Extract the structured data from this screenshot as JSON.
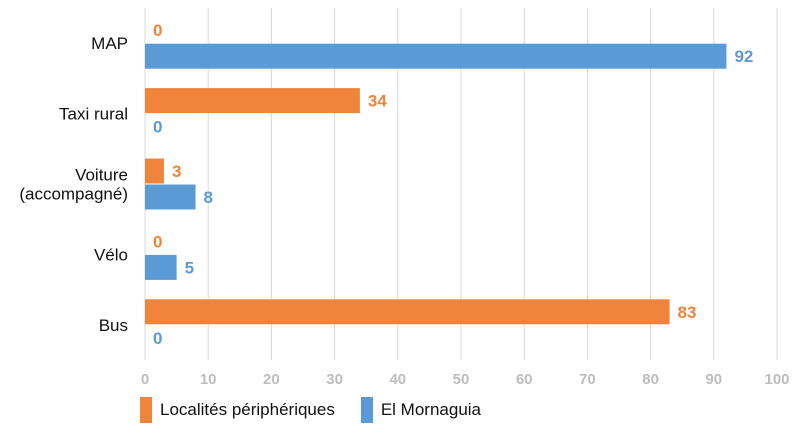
{
  "chart_data": {
    "type": "bar",
    "orientation": "horizontal",
    "categories": [
      "MAP",
      "Taxi rural",
      "Voiture\n(accompagné)",
      "Vélo",
      "Bus"
    ],
    "series": [
      {
        "name": "Localités périphériques",
        "color": "#f0843a",
        "values": [
          0,
          34,
          3,
          0,
          83
        ]
      },
      {
        "name": "El Mornaguia",
        "color": "#5b9bd5",
        "values": [
          92,
          0,
          8,
          5,
          0
        ]
      }
    ],
    "xlim": [
      0,
      100
    ],
    "xticks": [
      0,
      10,
      20,
      30,
      40,
      50,
      60,
      70,
      80,
      90,
      100
    ],
    "grid": true,
    "legend_position": "bottom-left",
    "title": "",
    "xlabel": "",
    "ylabel": ""
  }
}
